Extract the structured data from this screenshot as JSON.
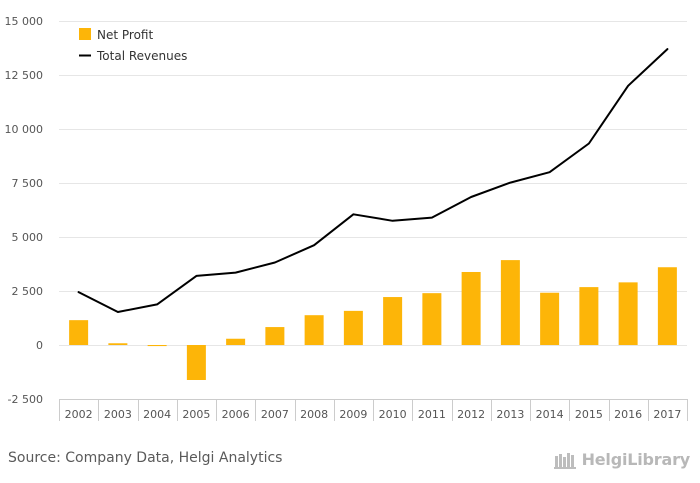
{
  "chart_data": {
    "type": "bar",
    "categories": [
      "2002",
      "2003",
      "2004",
      "2005",
      "2006",
      "2007",
      "2008",
      "2009",
      "2010",
      "2011",
      "2012",
      "2013",
      "2014",
      "2015",
      "2016",
      "2017"
    ],
    "series": [
      {
        "name": "Net Profit",
        "type": "bar",
        "color": "#FDB508",
        "values": [
          1150,
          80,
          -50,
          -1620,
          290,
          830,
          1380,
          1580,
          2220,
          2400,
          3380,
          3930,
          2420,
          2680,
          2900,
          3600
        ]
      },
      {
        "name": "Total Revenues",
        "type": "line",
        "color": "#000000",
        "values": [
          2450,
          1530,
          1880,
          3200,
          3350,
          3820,
          4620,
          6050,
          5750,
          5900,
          6850,
          7520,
          8000,
          9330,
          12000,
          13700
        ]
      }
    ],
    "ylim": [
      -2500,
      15000
    ],
    "yticks": [
      -2500,
      0,
      2500,
      5000,
      7500,
      10000,
      12500,
      15000
    ],
    "ytick_labels": [
      "-2 500",
      "0",
      "2 500",
      "5 000",
      "7 500",
      "10 000",
      "12 500",
      "15 000"
    ],
    "grid": true,
    "legend": "top-left"
  },
  "footer": {
    "source": "Source: Company Data, Helgi Analytics",
    "brand": "HelgiLibrary"
  },
  "colors": {
    "grid": "#e6e6e6",
    "axis": "#cccccc",
    "tick_label": "#555555",
    "brand": "#b8b8b8"
  }
}
